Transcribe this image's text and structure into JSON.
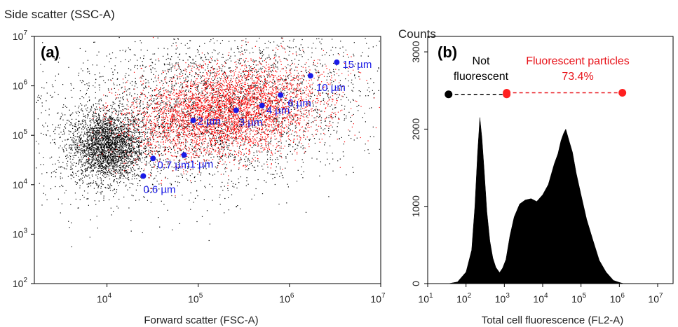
{
  "chart_data": [
    {
      "type": "scatter",
      "panel_label": "(a)",
      "ylabel": "Side scatter (SSC-A)",
      "xlabel": "Forward scatter (FSC-A)",
      "x_scale": "log",
      "y_scale": "log",
      "xlim": [
        1600,
        10000000
      ],
      "ylim": [
        100,
        10000000
      ],
      "x_ticks": [
        {
          "value": 10000,
          "base": "10",
          "exp": "4"
        },
        {
          "value": 100000,
          "base": "10",
          "exp": "5"
        },
        {
          "value": 1000000,
          "base": "10",
          "exp": "6"
        },
        {
          "value": 10000000,
          "base": "10",
          "exp": "7"
        }
      ],
      "y_ticks": [
        {
          "value": 100,
          "base": "10",
          "exp": "2"
        },
        {
          "value": 1000,
          "base": "10",
          "exp": "3"
        },
        {
          "value": 10000,
          "base": "10",
          "exp": "4"
        },
        {
          "value": 100000,
          "base": "10",
          "exp": "5"
        },
        {
          "value": 1000000,
          "base": "10",
          "exp": "6"
        },
        {
          "value": 10000000,
          "base": "10",
          "exp": "7"
        }
      ],
      "colors": {
        "non_fluorescent_events": "#000000",
        "fluorescent_events": "#ff0000",
        "beads": "#1a1ae6"
      },
      "event_clouds": [
        {
          "color": "#000000",
          "x_center": 10000,
          "y_center": 60000,
          "x_spread_decades": 0.2,
          "y_spread_decades": 0.35
        },
        {
          "color": "#000000",
          "x_center": 120000,
          "y_center": 300000,
          "x_spread_decades": 0.8,
          "y_spread_decades": 0.7
        },
        {
          "color": "#ff0000",
          "x_center": 200000,
          "y_center": 300000,
          "x_spread_decades": 0.45,
          "y_spread_decades": 0.4
        }
      ],
      "series": [
        {
          "points": [
            {
              "x": 25000,
              "y": 15000,
              "label": "0.6 µm"
            },
            {
              "x": 32000,
              "y": 34000,
              "label": "0.7 µm"
            },
            {
              "x": 70000,
              "y": 40000,
              "label": "1 µm"
            },
            {
              "x": 88000,
              "y": 200000,
              "label": "2 µm"
            },
            {
              "x": 260000,
              "y": 320000,
              "label": "3 µm"
            },
            {
              "x": 500000,
              "y": 400000,
              "label": "4 µm"
            },
            {
              "x": 800000,
              "y": 650000,
              "label": "6 µm"
            },
            {
              "x": 1700000,
              "y": 1600000,
              "label": "10 µm"
            },
            {
              "x": 3300000,
              "y": 3000000,
              "label": "15 µm"
            }
          ]
        }
      ]
    },
    {
      "type": "area",
      "panel_label": "(b)",
      "ylabel": "Counts",
      "xlabel": "Total cell fluorescence (FL2-A)",
      "x_scale": "log",
      "y_scale": "linear",
      "xlim": [
        10,
        10000000
      ],
      "ylim": [
        0,
        3200
      ],
      "x_ticks": [
        {
          "value": 10,
          "base": "10",
          "exp": "1"
        },
        {
          "value": 100,
          "base": "10",
          "exp": "2"
        },
        {
          "value": 1000,
          "base": "10",
          "exp": "3"
        },
        {
          "value": 10000,
          "base": "10",
          "exp": "4"
        },
        {
          "value": 100000,
          "base": "10",
          "exp": "5"
        },
        {
          "value": 1000000,
          "base": "10",
          "exp": "6"
        },
        {
          "value": 10000000,
          "base": "10",
          "exp": "7"
        }
      ],
      "y_ticks": [
        {
          "value": 0,
          "label": "0"
        },
        {
          "value": 1000,
          "label": "1000"
        },
        {
          "value": 2000,
          "label": "2000"
        },
        {
          "value": 3000,
          "label": "3000"
        }
      ],
      "fill_color": "#000000",
      "histogram": {
        "x": [
          35,
          60,
          100,
          140,
          170,
          200,
          230,
          260,
          300,
          350,
          420,
          500,
          600,
          750,
          900,
          1100,
          1400,
          1800,
          2500,
          3500,
          5000,
          7000,
          10000,
          14000,
          20000,
          25000,
          30000,
          35000,
          40000,
          50000,
          60000,
          75000,
          100000,
          140000,
          200000,
          300000,
          450000,
          700000,
          1000000,
          1300000
        ],
        "y": [
          0,
          40,
          150,
          450,
          1000,
          1700,
          2150,
          1900,
          1450,
          950,
          550,
          350,
          210,
          160,
          200,
          330,
          620,
          880,
          1030,
          1100,
          1100,
          1080,
          1150,
          1300,
          1550,
          1700,
          1850,
          1960,
          2000,
          1850,
          1700,
          1450,
          1150,
          850,
          580,
          320,
          150,
          60,
          15,
          0
        ]
      },
      "gates": [
        {
          "name": "Not fluorescent",
          "label_lines": [
            "Not",
            "fluorescent"
          ],
          "x_start": 35,
          "x_end": 1150,
          "level": 2450,
          "color": "#000000"
        },
        {
          "name": "Fluorescent particles",
          "label_lines": [
            "Fluorescent particles",
            "73.4%"
          ],
          "x_start": 1150,
          "x_end": 1200000,
          "level": 2470,
          "color": "#e8141b"
        }
      ]
    }
  ]
}
